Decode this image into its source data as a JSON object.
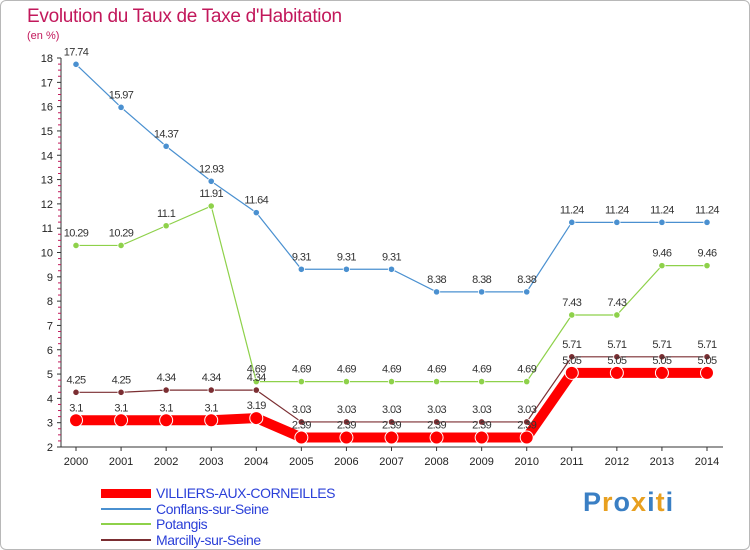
{
  "title": "Evolution du Taux de Taxe d'Habitation",
  "unit": "(en %)",
  "logo": {
    "text": "Proxiti",
    "colors": [
      "#3a7fc4",
      "#e8a020",
      "#3a7fc4",
      "#e8a020",
      "#3a7fc4",
      "#e8a020",
      "#3a7fc4"
    ]
  },
  "chart_data": {
    "type": "line",
    "title": "Evolution du Taux de Taxe d'Habitation",
    "ylabel": "(en %)",
    "xlabel": "",
    "ylim": [
      2,
      18
    ],
    "yticks": [
      2,
      3,
      4,
      5,
      6,
      7,
      8,
      9,
      10,
      11,
      12,
      13,
      14,
      15,
      16,
      17,
      18
    ],
    "grid": false,
    "legend": "bottom-left",
    "categories": [
      "2000",
      "2001",
      "2002",
      "2003",
      "2004",
      "2005",
      "2006",
      "2007",
      "2008",
      "2009",
      "2010",
      "2011",
      "2012",
      "2013",
      "2014"
    ],
    "series": [
      {
        "name": "VILLIERS-AUX-CORNEILLES",
        "color": "#ff0000",
        "bold": true,
        "values": [
          3.1,
          3.1,
          3.1,
          3.1,
          3.19,
          2.39,
          2.39,
          2.39,
          2.39,
          2.39,
          2.39,
          5.05,
          5.05,
          5.05,
          5.05
        ],
        "labels": [
          "3.1",
          "3.1",
          "3.1",
          "3.1",
          "3.19",
          "2.39",
          "2.39",
          "2.39",
          "2.39",
          "2.39",
          "2.39",
          "5.05",
          "5.05",
          "5.05",
          "5.05"
        ]
      },
      {
        "name": "Conflans-sur-Seine",
        "color": "#4a90d0",
        "bold": false,
        "values": [
          17.74,
          15.97,
          14.37,
          12.93,
          11.64,
          9.31,
          9.31,
          9.31,
          8.38,
          8.38,
          8.38,
          11.24,
          11.24,
          11.24,
          11.24
        ],
        "labels": [
          "17.74",
          "15.97",
          "14.37",
          "12.93",
          "11.64",
          "9.31",
          "9.31",
          "9.31",
          "8.38",
          "8.38",
          "8.38",
          "11.24",
          "11.24",
          "11.24",
          "11.24"
        ]
      },
      {
        "name": "Potangis",
        "color": "#8ed14a",
        "bold": false,
        "values": [
          10.29,
          10.29,
          11.1,
          11.91,
          4.69,
          4.69,
          4.69,
          4.69,
          4.69,
          4.69,
          4.69,
          7.43,
          7.43,
          9.46,
          9.46
        ],
        "labels": [
          "10.29",
          "10.29",
          "11.1",
          "11.91",
          "4.69",
          "4.69",
          "4.69",
          "4.69",
          "4.69",
          "4.69",
          "4.69",
          "7.43",
          "7.43",
          "9.46",
          "9.46"
        ]
      },
      {
        "name": "Marcilly-sur-Seine",
        "color": "#7b2e32",
        "bold": false,
        "values": [
          4.25,
          4.25,
          4.34,
          4.34,
          4.34,
          3.03,
          3.03,
          3.03,
          3.03,
          3.03,
          3.03,
          5.71,
          5.71,
          5.71,
          5.71
        ],
        "labels": [
          "4.25",
          "4.25",
          "4.34",
          "4.34",
          "4.34",
          "3.03",
          "3.03",
          "3.03",
          "3.03",
          "3.03",
          "3.03",
          "5.71",
          "5.71",
          "5.71",
          "5.71"
        ]
      }
    ]
  }
}
